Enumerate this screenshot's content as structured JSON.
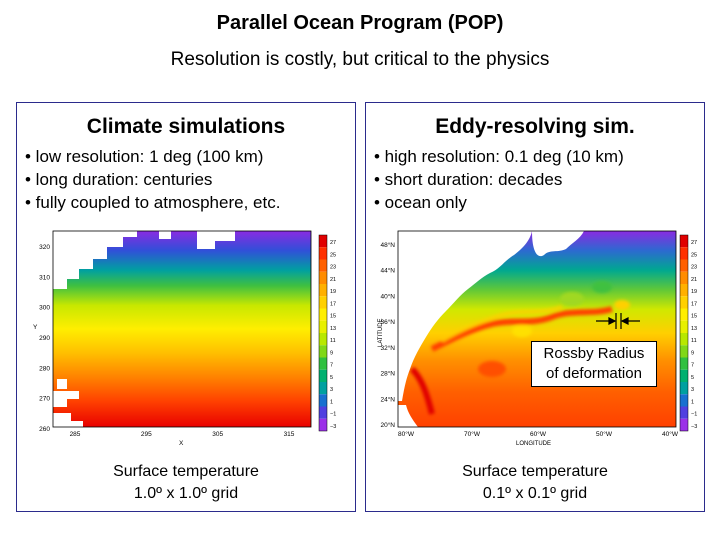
{
  "header": {
    "title": "Parallel Ocean Program (POP)",
    "subtitle": "Resolution is costly, but critical to the physics"
  },
  "left_panel": {
    "heading": "Climate simulations",
    "bullets": [
      "• low resolution: 1 deg (100 km)",
      "• long duration: centuries",
      "• fully coupled to atmosphere, etc."
    ],
    "caption_line1": "Surface temperature",
    "caption_line2": "1.0º x 1.0º grid",
    "plot": {
      "x_ticks": [
        "285",
        "295",
        "305",
        "315"
      ],
      "y_ticks": [
        "320",
        "310",
        "300",
        "290",
        "280",
        "270",
        "260"
      ],
      "x_label": "X",
      "y_label": "Y"
    }
  },
  "right_panel": {
    "heading": "Eddy-resolving sim.",
    "bullets": [
      "• high resolution: 0.1 deg (10 km)",
      "• short duration: decades",
      "• ocean only"
    ],
    "caption_line1": "Surface temperature",
    "caption_line2": "0.1º x 0.1º grid",
    "callout_line1": "Rossby Radius",
    "callout_line2": "of deformation",
    "plot": {
      "x_ticks": [
        "80°W",
        "70°W",
        "60°W",
        "50°W",
        "40°W"
      ],
      "y_ticks": [
        "48°N",
        "44°N",
        "40°N",
        "36°N",
        "32°N",
        "28°N",
        "24°N",
        "20°N"
      ],
      "x_label": "LONGITUDE",
      "y_label": "LATITUDE"
    }
  },
  "colorbar": {
    "labels": [
      "27",
      "25",
      "23",
      "21",
      "19",
      "17",
      "15",
      "13",
      "11",
      "9",
      "7",
      "5",
      "3",
      "1",
      "−1",
      "−3"
    ],
    "colors": [
      "#e00000",
      "#ff3000",
      "#ff6000",
      "#ff8c00",
      "#ffb000",
      "#ffd000",
      "#ffee00",
      "#e8f000",
      "#b8e800",
      "#80d818",
      "#30c040",
      "#00b070",
      "#00a0a0",
      "#1870d0",
      "#5040e0",
      "#9b30e8"
    ]
  },
  "colors": {
    "panel_border": "#2b2b8c",
    "land": "#ffffff"
  }
}
